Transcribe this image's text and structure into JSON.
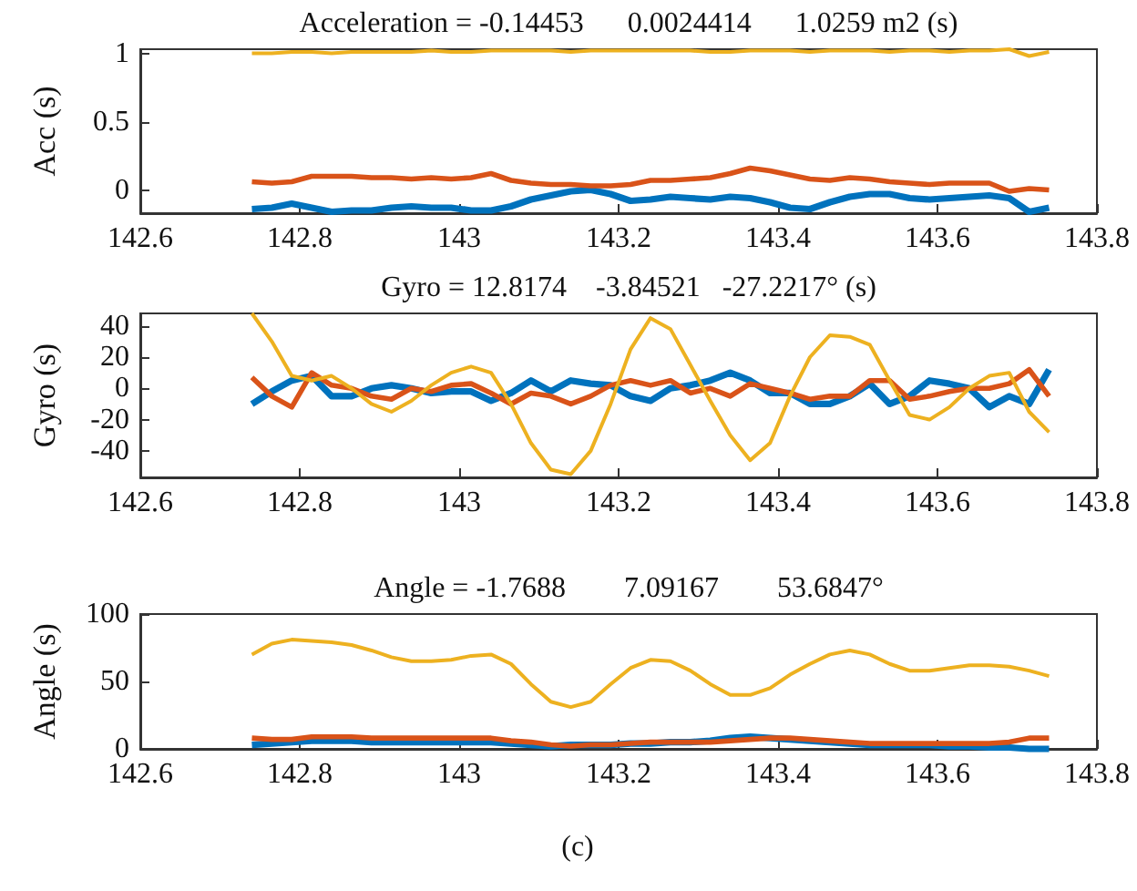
{
  "chart_data": [
    {
      "type": "line",
      "title": "Acceleration = -0.14453      0.0024414      1.0259 m2 (s)",
      "ylabel": "Acc (s)",
      "xlim": [
        142.6,
        143.8
      ],
      "xticks": [
        142.6,
        142.8,
        143,
        143.2,
        143.4,
        143.6,
        143.8
      ],
      "ylim": [
        -0.17,
        1.03
      ],
      "yticks": [
        0,
        0.5,
        1
      ],
      "x": [
        142.74,
        142.765,
        142.79,
        142.815,
        142.84,
        142.865,
        142.89,
        142.915,
        142.94,
        142.965,
        142.99,
        143.015,
        143.04,
        143.065,
        143.09,
        143.115,
        143.14,
        143.165,
        143.19,
        143.215,
        143.24,
        143.265,
        143.29,
        143.315,
        143.34,
        143.365,
        143.39,
        143.415,
        143.44,
        143.465,
        143.49,
        143.515,
        143.54,
        143.565,
        143.59,
        143.615,
        143.64,
        143.665,
        143.69,
        143.715,
        143.74
      ],
      "series": [
        {
          "color": "#0072bd",
          "values": [
            -0.14,
            -0.13,
            -0.1,
            -0.13,
            -0.16,
            -0.15,
            -0.15,
            -0.13,
            -0.12,
            -0.13,
            -0.13,
            -0.15,
            -0.15,
            -0.12,
            -0.07,
            -0.04,
            -0.01,
            0,
            -0.03,
            -0.08,
            -0.07,
            -0.05,
            -0.06,
            -0.07,
            -0.05,
            -0.06,
            -0.09,
            -0.13,
            -0.14,
            -0.09,
            -0.05,
            -0.03,
            -0.03,
            -0.06,
            -0.07,
            -0.06,
            -0.05,
            -0.04,
            -0.06,
            -0.16,
            -0.13
          ]
        },
        {
          "color": "#d95319",
          "values": [
            0.06,
            0.05,
            0.06,
            0.1,
            0.1,
            0.1,
            0.09,
            0.09,
            0.08,
            0.09,
            0.08,
            0.09,
            0.12,
            0.07,
            0.05,
            0.04,
            0.04,
            0.03,
            0.03,
            0.04,
            0.07,
            0.07,
            0.08,
            0.09,
            0.12,
            0.16,
            0.14,
            0.11,
            0.08,
            0.07,
            0.09,
            0.08,
            0.06,
            0.05,
            0.04,
            0.05,
            0.05,
            0.05,
            -0.01,
            0.01,
            0
          ]
        },
        {
          "color": "#edb120",
          "values": [
            1.0,
            1.0,
            1.01,
            1.01,
            1.0,
            1.01,
            1.01,
            1.01,
            1.01,
            1.02,
            1.01,
            1.01,
            1.02,
            1.02,
            1.02,
            1.02,
            1.01,
            1.02,
            1.02,
            1.02,
            1.02,
            1.02,
            1.02,
            1.01,
            1.01,
            1.02,
            1.02,
            1.02,
            1.01,
            1.02,
            1.02,
            1.02,
            1.01,
            1.02,
            1.02,
            1.01,
            1.02,
            1.02,
            1.03,
            0.98,
            1.01
          ]
        }
      ]
    },
    {
      "type": "line",
      "title": "Gyro = 12.8174    -3.84521   -27.2217° (s)",
      "ylabel": "Gyro (s)",
      "xlim": [
        142.6,
        143.8
      ],
      "xticks": [
        142.6,
        142.8,
        143,
        143.2,
        143.4,
        143.6,
        143.8
      ],
      "ylim": [
        -57,
        48
      ],
      "yticks": [
        -40,
        -20,
        0,
        20,
        40
      ],
      "x": [
        142.74,
        142.765,
        142.79,
        142.815,
        142.84,
        142.865,
        142.89,
        142.915,
        142.94,
        142.965,
        142.99,
        143.015,
        143.04,
        143.065,
        143.09,
        143.115,
        143.14,
        143.165,
        143.19,
        143.215,
        143.24,
        143.265,
        143.29,
        143.315,
        143.34,
        143.365,
        143.39,
        143.415,
        143.44,
        143.465,
        143.49,
        143.515,
        143.54,
        143.565,
        143.59,
        143.615,
        143.64,
        143.665,
        143.69,
        143.715,
        143.74
      ],
      "series": [
        {
          "color": "#0072bd",
          "values": [
            -10,
            -2,
            5,
            8,
            -5,
            -5,
            0,
            2,
            0,
            -3,
            -2,
            -2,
            -8,
            -3,
            5,
            -2,
            5,
            3,
            2,
            -5,
            -8,
            0,
            2,
            5,
            10,
            5,
            -3,
            -3,
            -10,
            -10,
            -5,
            3,
            -10,
            -5,
            5,
            3,
            0,
            -12,
            -5,
            -10,
            12
          ]
        },
        {
          "color": "#d95319",
          "values": [
            7,
            -5,
            -12,
            10,
            2,
            0,
            -5,
            -7,
            0,
            -2,
            2,
            3,
            -3,
            -10,
            -3,
            -5,
            -10,
            -5,
            2,
            5,
            2,
            5,
            -3,
            0,
            -5,
            3,
            0,
            -3,
            -7,
            -5,
            -5,
            5,
            5,
            -7,
            -5,
            -2,
            0,
            0,
            3,
            12,
            -5
          ]
        },
        {
          "color": "#edb120",
          "values": [
            48,
            30,
            8,
            5,
            8,
            0,
            -10,
            -15,
            -8,
            2,
            10,
            14,
            10,
            -10,
            -35,
            -52,
            -55,
            -40,
            -10,
            25,
            45,
            38,
            15,
            -8,
            -30,
            -46,
            -35,
            -5,
            20,
            34,
            33,
            28,
            5,
            -17,
            -20,
            -12,
            0,
            8,
            10,
            -15,
            -28
          ]
        }
      ]
    },
    {
      "type": "line",
      "title": "Angle = -1.7688        7.09167        53.6847°",
      "ylabel": "Angle (s)",
      "xlim": [
        142.6,
        143.8
      ],
      "xticks": [
        142.6,
        142.8,
        143,
        143.2,
        143.4,
        143.6,
        143.8
      ],
      "ylim": [
        0,
        100
      ],
      "yticks": [
        0,
        50,
        100
      ],
      "annotations": [
        "(c)"
      ],
      "x": [
        142.74,
        142.765,
        142.79,
        142.815,
        142.84,
        142.865,
        142.89,
        142.915,
        142.94,
        142.965,
        142.99,
        143.015,
        143.04,
        143.065,
        143.09,
        143.115,
        143.14,
        143.165,
        143.19,
        143.215,
        143.24,
        143.265,
        143.29,
        143.315,
        143.34,
        143.365,
        143.39,
        143.415,
        143.44,
        143.465,
        143.49,
        143.515,
        143.54,
        143.565,
        143.59,
        143.615,
        143.64,
        143.665,
        143.69,
        143.715,
        143.74
      ],
      "series": [
        {
          "color": "#0072bd",
          "values": [
            3,
            4,
            5,
            6,
            6,
            6,
            5,
            5,
            5,
            5,
            5,
            5,
            5,
            4,
            3,
            2,
            3,
            3,
            3,
            4,
            4,
            5,
            5,
            6,
            8,
            9,
            8,
            7,
            6,
            5,
            4,
            3,
            3,
            3,
            3,
            2,
            2,
            1,
            1,
            0,
            0
          ]
        },
        {
          "color": "#d95319",
          "values": [
            8,
            7,
            7,
            9,
            9,
            9,
            8,
            8,
            8,
            8,
            8,
            8,
            8,
            6,
            5,
            3,
            2,
            3,
            3,
            4,
            5,
            5,
            5,
            5,
            6,
            7,
            8,
            8,
            7,
            6,
            5,
            4,
            4,
            4,
            4,
            4,
            4,
            4,
            5,
            8,
            8
          ]
        },
        {
          "color": "#edb120",
          "values": [
            70,
            78,
            81,
            80,
            79,
            77,
            73,
            68,
            65,
            65,
            66,
            69,
            70,
            63,
            48,
            35,
            31,
            35,
            48,
            60,
            66,
            65,
            58,
            48,
            40,
            40,
            45,
            55,
            63,
            70,
            73,
            70,
            63,
            58,
            58,
            60,
            62,
            62,
            61,
            58,
            54
          ]
        }
      ]
    }
  ]
}
